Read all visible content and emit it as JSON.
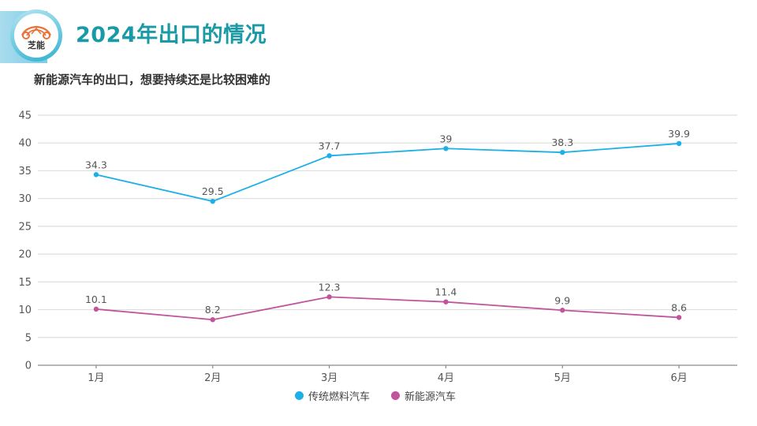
{
  "header": {
    "logo_text": "芝能",
    "title": "2024年出口的情况",
    "subtitle": "新能源汽车的出口，想要持续还是比较困难的"
  },
  "colors": {
    "accent": "#1a9aa6",
    "series1": "#1cb0e6",
    "series2": "#c2549c"
  },
  "chart_data": {
    "type": "line",
    "title": "",
    "xlabel": "",
    "ylabel": "",
    "categories": [
      "1月",
      "2月",
      "3月",
      "4月",
      "5月",
      "6月"
    ],
    "ylim": [
      0,
      45
    ],
    "yticks": [
      0,
      5,
      10,
      15,
      20,
      25,
      30,
      35,
      40,
      45
    ],
    "ytick_labels": [
      "0",
      "5",
      "10",
      "15",
      "20",
      "25",
      "30",
      "35",
      "40",
      "45"
    ],
    "grid": true,
    "legend_position": "bottom",
    "series": [
      {
        "name": "传统燃料汽车",
        "color": "#1cb0e6",
        "values": [
          34.3,
          29.5,
          37.7,
          39,
          38.3,
          39.9
        ],
        "labels": [
          "34.3",
          "29.5",
          "37.7",
          "39",
          "38.3",
          "39.9"
        ]
      },
      {
        "name": "新能源汽车",
        "color": "#c2549c",
        "values": [
          10.1,
          8.2,
          12.3,
          11.4,
          9.9,
          8.6
        ],
        "labels": [
          "10.1",
          "8.2",
          "12.3",
          "11.4",
          "9.9",
          "8.6"
        ]
      }
    ]
  }
}
